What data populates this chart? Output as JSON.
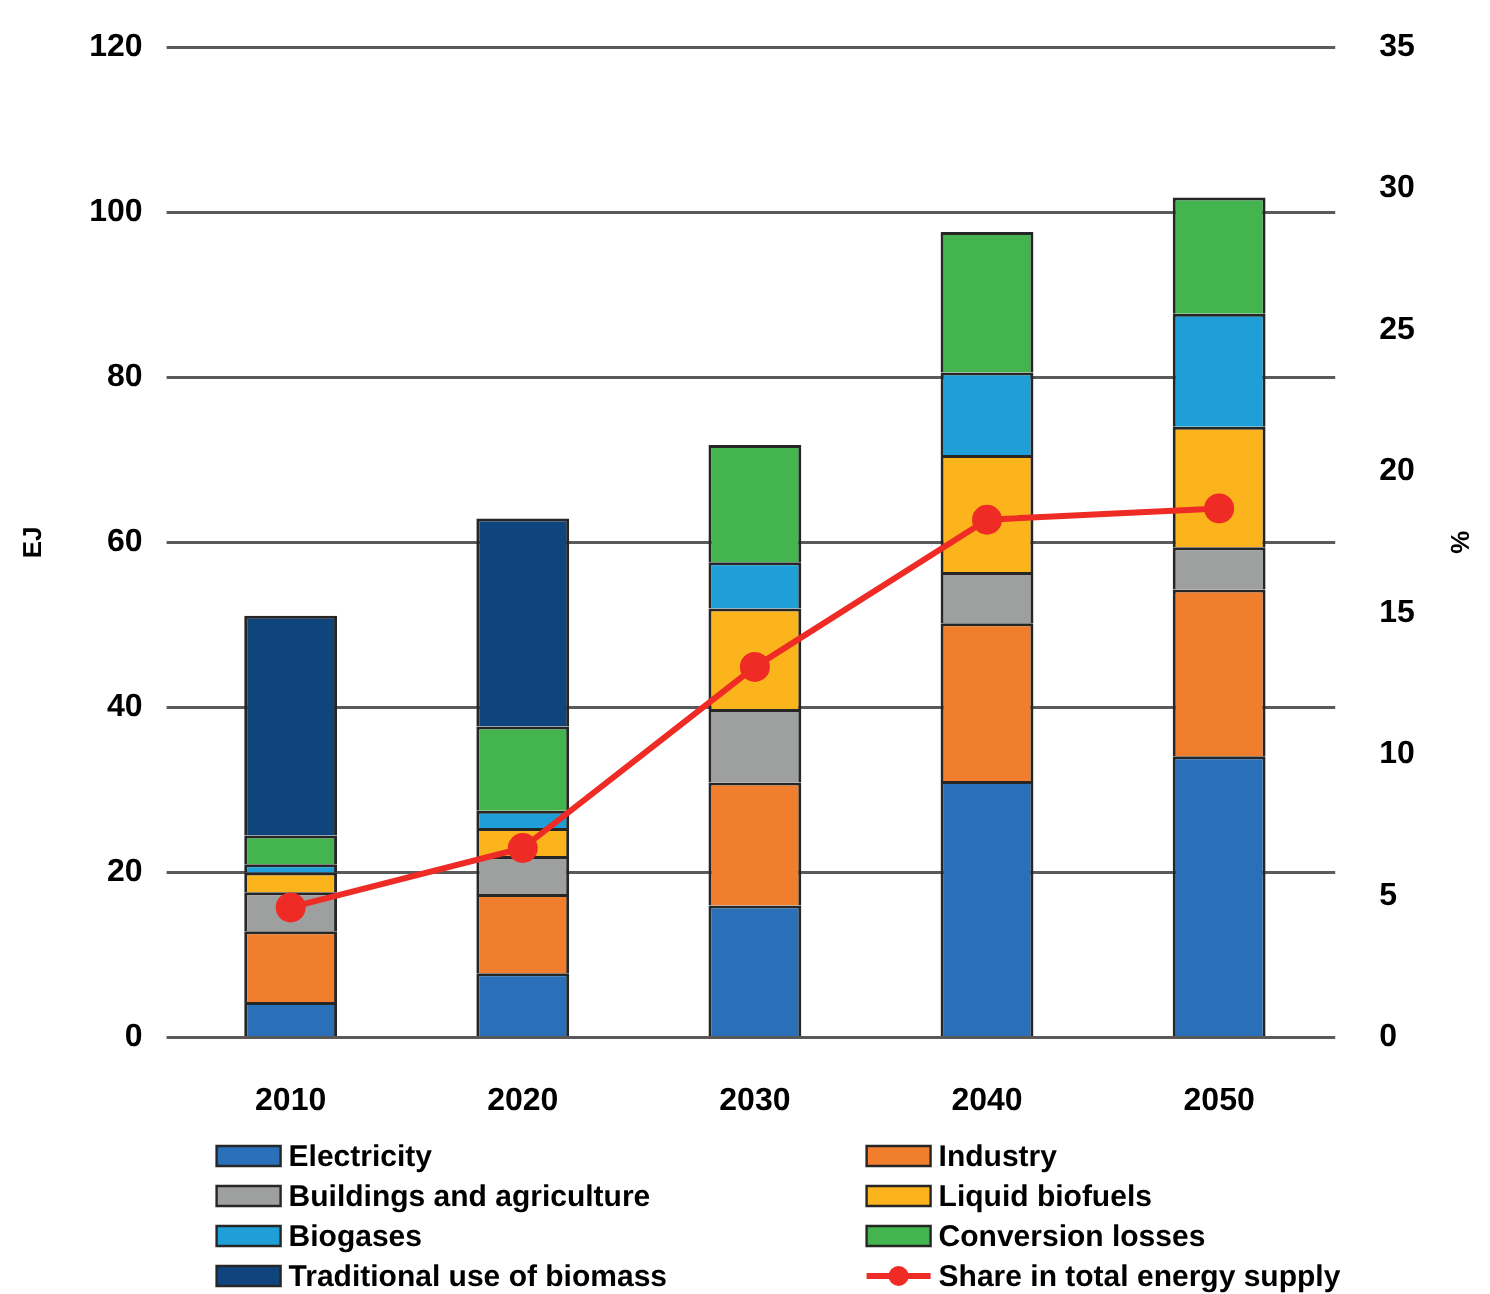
{
  "chart_data": {
    "type": "bar",
    "stacked": true,
    "categories": [
      "2010",
      "2020",
      "2030",
      "2040",
      "2050"
    ],
    "ylabel": "EJ",
    "y2label": "%",
    "ylim": [
      0,
      120
    ],
    "yticks": [
      0,
      20,
      40,
      60,
      80,
      100,
      120
    ],
    "y2lim": [
      0,
      35
    ],
    "y2ticks": [
      0,
      5,
      10,
      15,
      20,
      25,
      30,
      35
    ],
    "grid": "y",
    "legend": "bottom",
    "series": [
      {
        "name": "Electricity",
        "color": "#2970b8",
        "values": [
          4.3,
          7.8,
          16.0,
          31.1,
          34.1
        ]
      },
      {
        "name": "Industry",
        "color": "#f07e2d",
        "values": [
          8.6,
          9.6,
          14.9,
          19.1,
          20.2
        ]
      },
      {
        "name": "Buildings and agriculture",
        "color": "#9ea0a0",
        "values": [
          4.7,
          4.6,
          8.9,
          6.2,
          5.1
        ]
      },
      {
        "name": "Liquid biofuels",
        "color": "#fbb41c",
        "values": [
          2.4,
          3.4,
          12.2,
          14.2,
          14.6
        ]
      },
      {
        "name": "Biogases",
        "color": "#1e9fd7",
        "values": [
          1.0,
          2.1,
          5.6,
          10.0,
          13.7
        ]
      },
      {
        "name": "Conversion losses",
        "color": "#43b44e",
        "values": [
          3.5,
          10.2,
          14.2,
          17.0,
          14.1
        ]
      },
      {
        "name": "Traditional use of biomass",
        "color": "#0f457c",
        "values": [
          26.6,
          25.2,
          null,
          null,
          null
        ]
      },
      {
        "name": "Share in total energy supply",
        "type": "line",
        "axis": "y2",
        "color": "#ee2b24",
        "marker": "circle",
        "values": [
          4.6,
          6.7,
          13.1,
          18.3,
          18.7
        ]
      }
    ]
  }
}
